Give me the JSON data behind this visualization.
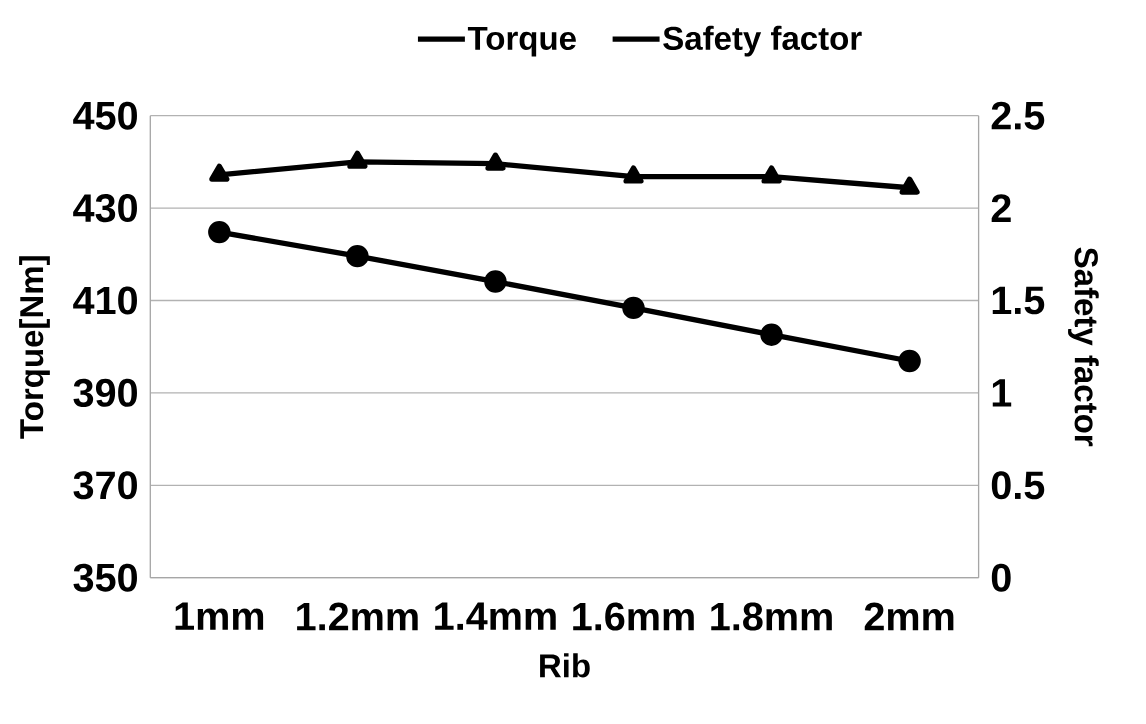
{
  "chart_data": {
    "type": "line",
    "xlabel": "Rib",
    "ylabel": "Torque[Nm]",
    "y2label": "Safety factor",
    "categories": [
      "1mm",
      "1.2mm",
      "1.4mm",
      "1.6mm",
      "1.8mm",
      "2mm"
    ],
    "series": [
      {
        "name": "Torque",
        "color": "#000000",
        "marker": "circle",
        "values": [
          424.8,
          419.6,
          414.1,
          408.4,
          402.6,
          396.9
        ]
      },
      {
        "name": "Safety factor",
        "color": "#000000",
        "marker": "triangle",
        "axis": "y2",
        "values": [
          2.18,
          2.25,
          2.24,
          2.17,
          2.17,
          2.11
        ]
      }
    ],
    "ylim": [
      350,
      450
    ],
    "yticks": [
      350,
      370,
      390,
      410,
      430,
      450
    ],
    "y2lim": [
      0,
      2.5
    ],
    "y2ticks": [
      0,
      0.5,
      1,
      1.5,
      2,
      2.5
    ],
    "grid": "y",
    "legend": "top",
    "line_style": "solid"
  }
}
